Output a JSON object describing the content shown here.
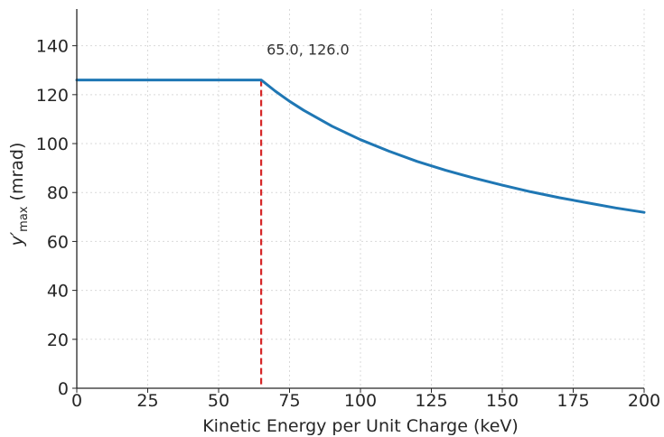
{
  "chart_data": {
    "type": "line",
    "title": "",
    "xlabel": "Kinetic Energy per Unit Charge (keV)",
    "ylabel_main": "y′",
    "ylabel_sub": "max",
    "ylabel_unit": " (mrad)",
    "xlim": [
      0,
      200
    ],
    "ylim": [
      0,
      155
    ],
    "xticks": [
      0,
      25,
      50,
      75,
      100,
      125,
      150,
      175,
      200
    ],
    "yticks": [
      0,
      20,
      40,
      60,
      80,
      100,
      120,
      140
    ],
    "grid": true,
    "series": [
      {
        "color": "#1f77b4",
        "x": [
          0,
          10,
          20,
          30,
          40,
          50,
          60,
          65,
          70,
          75,
          80,
          90,
          100,
          110,
          120,
          130,
          140,
          150,
          160,
          170,
          180,
          190,
          200
        ],
        "y": [
          126,
          126,
          126,
          126,
          126,
          126,
          126,
          126,
          121.4,
          117.3,
          113.6,
          107.1,
          101.6,
          96.9,
          92.7,
          89.1,
          85.9,
          83.0,
          80.3,
          77.9,
          75.8,
          73.7,
          71.9
        ]
      }
    ],
    "vline": {
      "x": 65,
      "color": "#d62728"
    },
    "annotation": {
      "x": 65,
      "y": 126,
      "text": "65.0, 126.0"
    }
  }
}
